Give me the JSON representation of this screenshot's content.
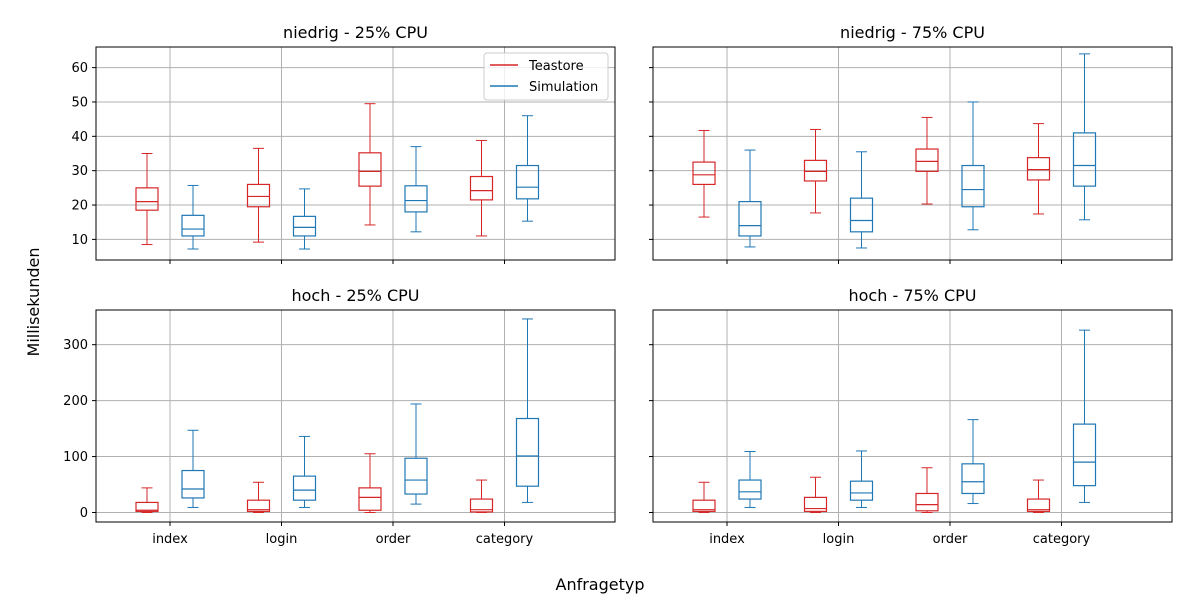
{
  "chart_data": {
    "type": "box",
    "xlabel": "Anfragetyp",
    "ylabel": "Millisekunden",
    "categories": [
      "index",
      "login",
      "order",
      "category"
    ],
    "colors": {
      "Teastore": "#d62728",
      "Simulation": "#1f77b4"
    },
    "legend": {
      "position": "top-right",
      "entries": [
        "Teastore",
        "Simulation"
      ]
    },
    "grid": true,
    "panels": [
      {
        "title": "niedrig - 25% CPU",
        "ylim": [
          4,
          66
        ],
        "yticks": [
          10,
          20,
          30,
          40,
          50,
          60
        ],
        "series": [
          {
            "name": "Teastore",
            "boxes": [
              {
                "whislo": 8.5,
                "q1": 18.5,
                "med": 21,
                "q3": 25,
                "whishi": 35
              },
              {
                "whislo": 9.2,
                "q1": 19.5,
                "med": 22.5,
                "q3": 26,
                "whishi": 36.5
              },
              {
                "whislo": 14.2,
                "q1": 25.5,
                "med": 29.8,
                "q3": 35.2,
                "whishi": 49.5
              },
              {
                "whislo": 11,
                "q1": 21.5,
                "med": 24.2,
                "q3": 28.3,
                "whishi": 38.8
              }
            ]
          },
          {
            "name": "Simulation",
            "boxes": [
              {
                "whislo": 7.2,
                "q1": 11,
                "med": 13,
                "q3": 17,
                "whishi": 25.7
              },
              {
                "whislo": 7.2,
                "q1": 11,
                "med": 13.5,
                "q3": 16.7,
                "whishi": 24.7
              },
              {
                "whislo": 12.2,
                "q1": 18,
                "med": 21.3,
                "q3": 25.6,
                "whishi": 37
              },
              {
                "whislo": 15.3,
                "q1": 21.8,
                "med": 25.2,
                "q3": 31.5,
                "whishi": 46
              }
            ]
          }
        ]
      },
      {
        "title": "niedrig - 75% CPU",
        "ylim": [
          4,
          66
        ],
        "yticks": [
          10,
          20,
          30,
          40,
          50,
          60
        ],
        "series": [
          {
            "name": "Teastore",
            "boxes": [
              {
                "whislo": 16.5,
                "q1": 26,
                "med": 28.8,
                "q3": 32.5,
                "whishi": 41.7
              },
              {
                "whislo": 17.7,
                "q1": 27,
                "med": 29.8,
                "q3": 33,
                "whishi": 42
              },
              {
                "whislo": 20.3,
                "q1": 29.8,
                "med": 32.7,
                "q3": 36.3,
                "whishi": 45.5
              },
              {
                "whislo": 17.4,
                "q1": 27.3,
                "med": 30.3,
                "q3": 33.8,
                "whishi": 43.7
              }
            ]
          },
          {
            "name": "Simulation",
            "boxes": [
              {
                "whislo": 7.8,
                "q1": 11,
                "med": 14,
                "q3": 21,
                "whishi": 36
              },
              {
                "whislo": 7.5,
                "q1": 12.2,
                "med": 15.5,
                "q3": 22,
                "whishi": 35.5
              },
              {
                "whislo": 12.8,
                "q1": 19.5,
                "med": 24.5,
                "q3": 31.5,
                "whishi": 50
              },
              {
                "whislo": 15.7,
                "q1": 25.5,
                "med": 31.5,
                "q3": 41,
                "whishi": 64
              }
            ]
          }
        ]
      },
      {
        "title": "hoch - 25% CPU",
        "ylim": [
          -17,
          362
        ],
        "yticks": [
          0,
          100,
          200,
          300
        ],
        "series": [
          {
            "name": "Teastore",
            "boxes": [
              {
                "whislo": 0,
                "q1": 2,
                "med": 4,
                "q3": 18,
                "whishi": 44
              },
              {
                "whislo": 0,
                "q1": 2,
                "med": 5,
                "q3": 22,
                "whishi": 54
              },
              {
                "whislo": 0,
                "q1": 4,
                "med": 27,
                "q3": 44,
                "whishi": 105
              },
              {
                "whislo": 0,
                "q1": 1,
                "med": 5,
                "q3": 24,
                "whishi": 58
              }
            ]
          },
          {
            "name": "Simulation",
            "boxes": [
              {
                "whislo": 9,
                "q1": 26,
                "med": 42,
                "q3": 75,
                "whishi": 147
              },
              {
                "whislo": 9,
                "q1": 22,
                "med": 40,
                "q3": 65,
                "whishi": 136
              },
              {
                "whislo": 15,
                "q1": 33,
                "med": 58,
                "q3": 97,
                "whishi": 194
              },
              {
                "whislo": 18,
                "q1": 47,
                "med": 101,
                "q3": 168,
                "whishi": 346
              }
            ]
          }
        ]
      },
      {
        "title": "hoch - 75% CPU",
        "ylim": [
          -17,
          362
        ],
        "yticks": [
          0,
          100,
          200,
          300
        ],
        "series": [
          {
            "name": "Teastore",
            "boxes": [
              {
                "whislo": 0,
                "q1": 2,
                "med": 5,
                "q3": 22,
                "whishi": 54
              },
              {
                "whislo": 0,
                "q1": 2,
                "med": 7,
                "q3": 27,
                "whishi": 63
              },
              {
                "whislo": 0,
                "q1": 3,
                "med": 14,
                "q3": 34,
                "whishi": 80
              },
              {
                "whislo": 0,
                "q1": 2,
                "med": 5,
                "q3": 24,
                "whishi": 58
              }
            ]
          },
          {
            "name": "Simulation",
            "boxes": [
              {
                "whislo": 9,
                "q1": 24,
                "med": 37,
                "q3": 58,
                "whishi": 109
              },
              {
                "whislo": 9,
                "q1": 22,
                "med": 35,
                "q3": 56,
                "whishi": 110
              },
              {
                "whislo": 16,
                "q1": 34,
                "med": 55,
                "q3": 87,
                "whishi": 166
              },
              {
                "whislo": 18,
                "q1": 48,
                "med": 90,
                "q3": 158,
                "whishi": 326
              }
            ]
          }
        ]
      }
    ]
  }
}
